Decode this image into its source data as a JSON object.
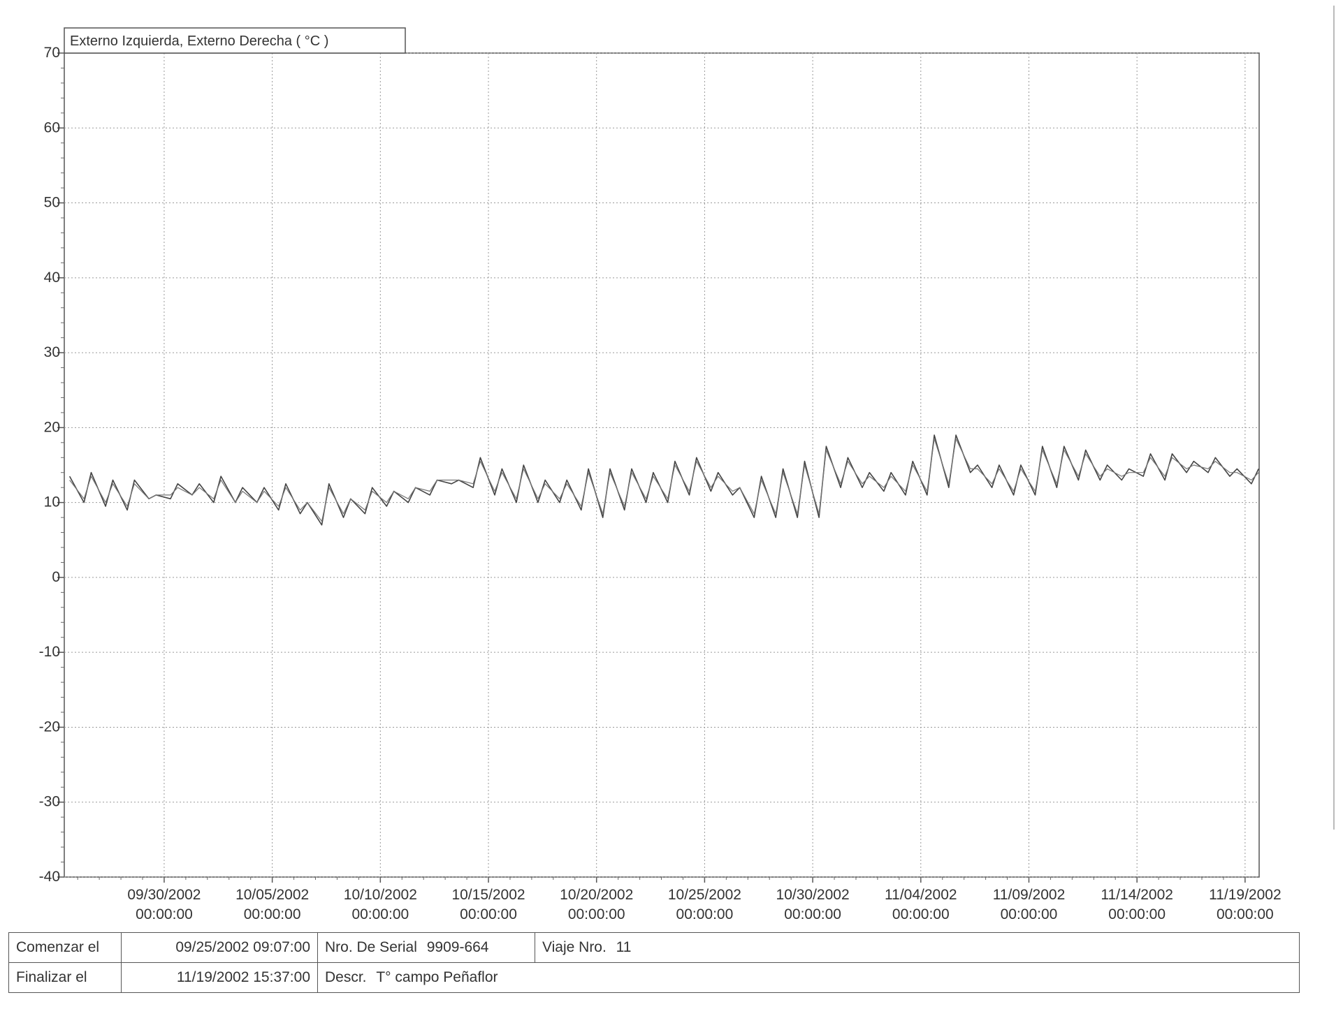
{
  "chart_data": {
    "type": "line",
    "title": "Externo Izquierda, Externo Derecha ( °C )",
    "ylim": [
      -40,
      70
    ],
    "yticks": [
      "70",
      "60",
      "50",
      "40",
      "30",
      "20",
      "10",
      "0",
      "-10",
      "-20",
      "-30",
      "-40"
    ],
    "ytick_values": [
      70,
      60,
      50,
      40,
      30,
      20,
      10,
      0,
      -10,
      -20,
      -30,
      -40
    ],
    "xlim": [
      "09/25/2002 09:07:00",
      "11/19/2002 15:37:00"
    ],
    "xticks": [
      {
        "date": "09/30/2002",
        "time": "00:00:00"
      },
      {
        "date": "10/05/2002",
        "time": "00:00:00"
      },
      {
        "date": "10/10/2002",
        "time": "00:00:00"
      },
      {
        "date": "10/15/2002",
        "time": "00:00:00"
      },
      {
        "date": "10/20/2002",
        "time": "00:00:00"
      },
      {
        "date": "10/25/2002",
        "time": "00:00:00"
      },
      {
        "date": "10/30/2002",
        "time": "00:00:00"
      },
      {
        "date": "11/04/2002",
        "time": "00:00:00"
      },
      {
        "date": "11/09/2002",
        "time": "00:00:00"
      },
      {
        "date": "11/14/2002",
        "time": "00:00:00"
      },
      {
        "date": "11/19/2002",
        "time": "00:00:00"
      }
    ],
    "grid": true,
    "series": [
      {
        "name": "Externo Izquierda",
        "color": "#444444",
        "x": [
          "09/25/2002",
          "09/26/2002",
          "09/27/2002",
          "09/28/2002",
          "09/29/2002",
          "09/30/2002",
          "10/01/2002",
          "10/02/2002",
          "10/03/2002",
          "10/04/2002",
          "10/05/2002",
          "10/06/2002",
          "10/07/2002",
          "10/08/2002",
          "10/09/2002",
          "10/10/2002",
          "10/11/2002",
          "10/12/2002",
          "10/13/2002",
          "10/14/2002",
          "10/15/2002",
          "10/16/2002",
          "10/17/2002",
          "10/18/2002",
          "10/19/2002",
          "10/20/2002",
          "10/21/2002",
          "10/22/2002",
          "10/23/2002",
          "10/24/2002",
          "10/25/2002",
          "10/26/2002",
          "10/27/2002",
          "10/28/2002",
          "10/29/2002",
          "10/30/2002",
          "10/31/2002",
          "11/01/2002",
          "11/02/2002",
          "11/03/2002",
          "11/04/2002",
          "11/05/2002",
          "11/06/2002",
          "11/07/2002",
          "11/08/2002",
          "11/09/2002",
          "11/10/2002",
          "11/11/2002",
          "11/12/2002",
          "11/13/2002",
          "11/14/2002",
          "11/15/2002",
          "11/16/2002",
          "11/17/2002",
          "11/18/2002",
          "11/19/2002"
        ],
        "min": [
          7.5,
          10.0,
          9.5,
          9.0,
          10.5,
          10.5,
          11.0,
          10.0,
          10.0,
          10.0,
          9.0,
          8.5,
          7.0,
          8.0,
          8.5,
          9.5,
          10.0,
          11.0,
          12.5,
          12.0,
          11.0,
          10.0,
          10.0,
          10.0,
          9.0,
          8.0,
          9.0,
          10.0,
          10.0,
          11.0,
          11.5,
          11.0,
          8.0,
          8.0,
          8.0,
          8.0,
          12.0,
          12.0,
          11.5,
          11.0,
          11.0,
          12.0,
          14.0,
          12.0,
          11.0,
          11.0,
          12.0,
          13.0,
          13.0,
          13.0,
          13.5,
          13.0,
          14.0,
          14.0,
          13.5,
          12.5
        ],
        "max": [
          13.5,
          14.0,
          13.0,
          13.0,
          11.0,
          12.5,
          12.5,
          13.5,
          12.0,
          12.0,
          12.5,
          10.0,
          12.5,
          10.5,
          12.0,
          11.5,
          12.0,
          13.0,
          13.0,
          16.0,
          14.5,
          15.0,
          13.0,
          13.0,
          14.5,
          14.5,
          14.5,
          14.0,
          15.5,
          16.0,
          14.0,
          12.0,
          13.5,
          14.5,
          15.5,
          17.5,
          16.0,
          14.0,
          14.0,
          15.5,
          19.0,
          19.0,
          15.0,
          15.0,
          15.0,
          17.5,
          17.5,
          17.0,
          15.0,
          14.5,
          16.5,
          16.5,
          15.5,
          16.0,
          14.5,
          14.5
        ]
      },
      {
        "name": "Externo Derecha",
        "color": "#777777",
        "x": [
          "09/25/2002",
          "09/26/2002",
          "09/27/2002",
          "09/28/2002",
          "09/29/2002",
          "09/30/2002",
          "10/01/2002",
          "10/02/2002",
          "10/03/2002",
          "10/04/2002",
          "10/05/2002",
          "10/06/2002",
          "10/07/2002",
          "10/08/2002",
          "10/09/2002",
          "10/10/2002",
          "10/11/2002",
          "10/12/2002",
          "10/13/2002",
          "10/14/2002",
          "10/15/2002",
          "10/16/2002",
          "10/17/2002",
          "10/18/2002",
          "10/19/2002",
          "10/20/2002",
          "10/21/2002",
          "10/22/2002",
          "10/23/2002",
          "10/24/2002",
          "10/25/2002",
          "10/26/2002",
          "10/27/2002",
          "10/28/2002",
          "10/29/2002",
          "10/30/2002",
          "10/31/2002",
          "11/01/2002",
          "11/02/2002",
          "11/03/2002",
          "11/04/2002",
          "11/05/2002",
          "11/06/2002",
          "11/07/2002",
          "11/08/2002",
          "11/09/2002",
          "11/10/2002",
          "11/11/2002",
          "11/12/2002",
          "11/13/2002",
          "11/14/2002",
          "11/15/2002",
          "11/16/2002",
          "11/17/2002",
          "11/18/2002",
          "11/19/2002"
        ],
        "min": [
          8.0,
          10.5,
          10.0,
          9.5,
          10.5,
          11.0,
          11.0,
          10.5,
          10.0,
          10.0,
          9.5,
          9.0,
          7.5,
          8.5,
          9.0,
          10.0,
          10.5,
          11.5,
          13.0,
          12.5,
          11.5,
          10.5,
          10.5,
          10.5,
          9.5,
          8.5,
          9.5,
          10.5,
          10.5,
          11.5,
          12.0,
          11.5,
          8.5,
          8.5,
          8.5,
          8.5,
          12.5,
          12.5,
          12.0,
          11.5,
          11.5,
          12.5,
          14.5,
          12.5,
          11.5,
          11.5,
          12.5,
          13.5,
          13.5,
          13.5,
          14.0,
          13.5,
          14.5,
          14.5,
          14.0,
          13.0
        ],
        "max": [
          13.0,
          13.5,
          12.5,
          12.5,
          11.0,
          12.0,
          12.0,
          13.0,
          11.5,
          11.5,
          12.0,
          10.0,
          12.0,
          10.5,
          11.5,
          11.5,
          12.0,
          13.0,
          13.0,
          15.5,
          14.0,
          14.5,
          12.5,
          12.5,
          14.0,
          14.0,
          14.0,
          13.5,
          15.0,
          15.5,
          13.5,
          12.0,
          13.0,
          14.0,
          15.0,
          17.0,
          15.5,
          13.5,
          13.5,
          15.0,
          18.5,
          18.5,
          14.5,
          14.5,
          14.5,
          17.0,
          17.0,
          16.5,
          14.5,
          14.0,
          16.0,
          16.0,
          15.0,
          15.5,
          14.0,
          14.0
        ]
      }
    ]
  },
  "info": {
    "start_label": "Comenzar el",
    "start_value": "09/25/2002 09:07:00",
    "serial_label": "Nro. De Serial",
    "serial_value": "9909-664",
    "trip_label": "Viaje Nro.",
    "trip_value": "11",
    "end_label": "Finalizar el",
    "end_value": "11/19/2002 15:37:00",
    "descr_label": "Descr.",
    "descr_value": "T° campo Peñaflor"
  }
}
